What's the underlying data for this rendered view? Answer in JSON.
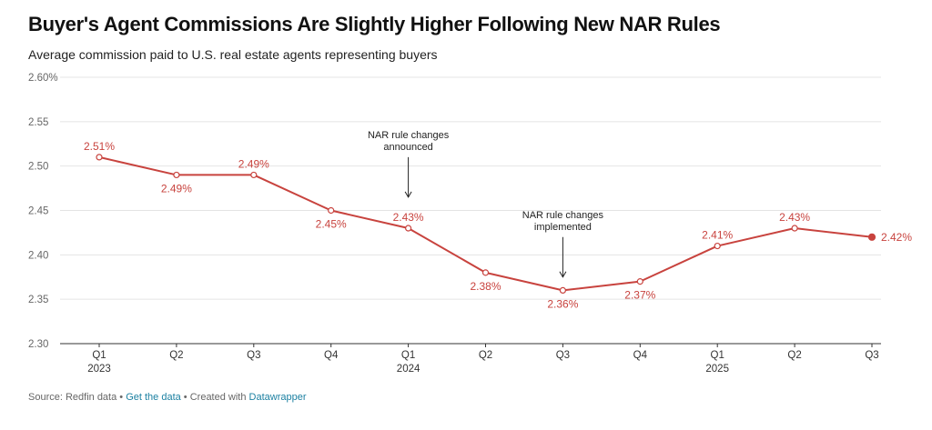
{
  "header": {
    "title": "Buyer's Agent Commissions Are Slightly Higher Following New NAR Rules",
    "subtitle": "Average commission paid to U.S. real estate agents representing buyers"
  },
  "footer": {
    "source": "Source: Redfin data",
    "sep1": " • ",
    "get_data": "Get the data",
    "sep2": " • Created with ",
    "tool": "Datawrapper"
  },
  "colors": {
    "line": "#c8433e",
    "grid": "#e4e4e4",
    "baseline": "#333333"
  },
  "chart_data": {
    "type": "line",
    "title": "Buyer's Agent Commissions Are Slightly Higher Following New NAR Rules",
    "subtitle": "Average commission paid to U.S. real estate agents representing buyers",
    "categories": [
      "Q1 2023",
      "Q2 2023",
      "Q3 2023",
      "Q4 2023",
      "Q1 2024",
      "Q2 2024",
      "Q3 2024",
      "Q4 2024",
      "Q1 2025",
      "Q2 2025",
      "Q3 2025"
    ],
    "x_tick_labels": [
      {
        "quarter": "Q1",
        "year": "2023"
      },
      {
        "quarter": "Q2",
        "year": ""
      },
      {
        "quarter": "Q3",
        "year": ""
      },
      {
        "quarter": "Q4",
        "year": ""
      },
      {
        "quarter": "Q1",
        "year": "2024"
      },
      {
        "quarter": "Q2",
        "year": ""
      },
      {
        "quarter": "Q3",
        "year": ""
      },
      {
        "quarter": "Q4",
        "year": ""
      },
      {
        "quarter": "Q1",
        "year": "2025"
      },
      {
        "quarter": "Q2",
        "year": ""
      },
      {
        "quarter": "Q3",
        "year": ""
      }
    ],
    "values": [
      2.51,
      2.49,
      2.49,
      2.45,
      2.43,
      2.38,
      2.36,
      2.37,
      2.41,
      2.43,
      2.42
    ],
    "data_labels": [
      "2.51%",
      "2.49%",
      "2.49%",
      "2.45%",
      "2.43%",
      "2.38%",
      "2.36%",
      "2.37%",
      "2.41%",
      "2.43%",
      "2.42%"
    ],
    "label_side": [
      "above",
      "below",
      "above",
      "below",
      "above",
      "below",
      "below",
      "below",
      "above",
      "above",
      "right"
    ],
    "ylim": [
      2.3,
      2.6
    ],
    "y_ticks": [
      {
        "value": 2.6,
        "label": "2.60%"
      },
      {
        "value": 2.55,
        "label": "2.55"
      },
      {
        "value": 2.5,
        "label": "2.50"
      },
      {
        "value": 2.45,
        "label": "2.45"
      },
      {
        "value": 2.4,
        "label": "2.40"
      },
      {
        "value": 2.35,
        "label": "2.35"
      },
      {
        "value": 2.3,
        "label": "2.30"
      }
    ],
    "grid": true,
    "annotations": [
      {
        "index": 4,
        "lines": [
          "NAR rule changes",
          "announced"
        ],
        "target_value": 2.465
      },
      {
        "index": 6,
        "lines": [
          "NAR rule changes",
          "implemented"
        ],
        "target_value": 2.375
      }
    ]
  }
}
